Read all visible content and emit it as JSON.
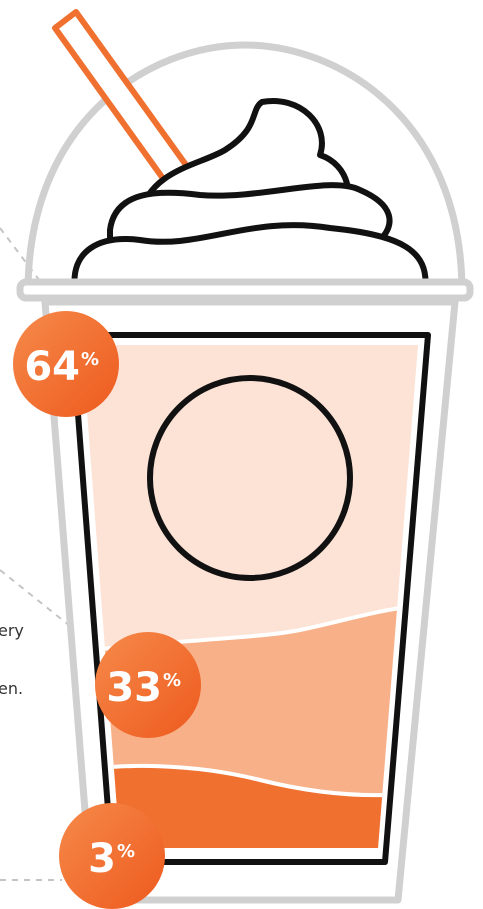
{
  "badges": [
    {
      "number": "64",
      "unit": "%"
    },
    {
      "number": "33",
      "unit": "%"
    },
    {
      "number": "3",
      "unit": "%"
    }
  ],
  "fragments": [
    "ery",
    "en."
  ]
}
